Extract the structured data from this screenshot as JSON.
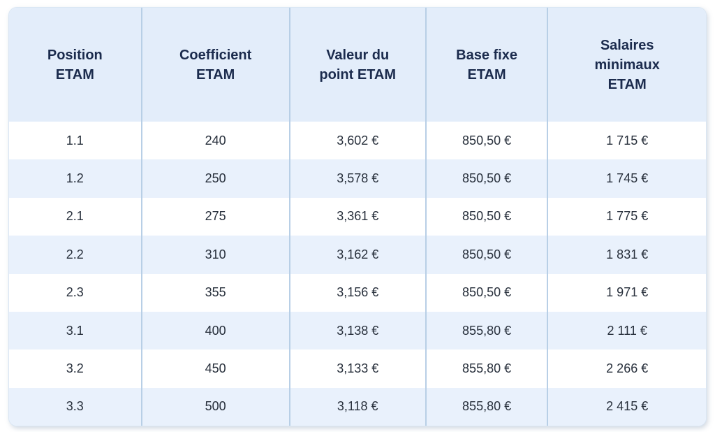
{
  "colors": {
    "header_bg": "#e3edfa",
    "stripe_bg": "#e9f1fc",
    "separator": "#b8cfe6",
    "header_text": "#1b2b4d",
    "cell_text": "#28303c",
    "card_border": "#d9e6f4"
  },
  "chart_data": {
    "type": "table",
    "title": "",
    "columns": [
      "Position\nETAM",
      "Coefficient\nETAM",
      "Valeur du\npoint ETAM",
      "Base fixe\nETAM",
      "Salaires\nminimaux\nETAM"
    ],
    "rows": [
      [
        "1.1",
        "240",
        "3,602 €",
        "850,50 €",
        "1 715 €"
      ],
      [
        "1.2",
        "250",
        "3,578 €",
        "850,50 €",
        "1 745 €"
      ],
      [
        "2.1",
        "275",
        "3,361 €",
        "850,50 €",
        "1 775 €"
      ],
      [
        "2.2",
        "310",
        "3,162 €",
        "850,50 €",
        "1 831 €"
      ],
      [
        "2.3",
        "355",
        "3,156 €",
        "850,50 €",
        "1 971 €"
      ],
      [
        "3.1",
        "400",
        "3,138 €",
        "855,80 €",
        "2 111 €"
      ],
      [
        "3.2",
        "450",
        "3,133 €",
        "855,80 €",
        "2 266 €"
      ],
      [
        "3.3",
        "500",
        "3,118 €",
        "855,80 €",
        "2 415 €"
      ]
    ]
  }
}
